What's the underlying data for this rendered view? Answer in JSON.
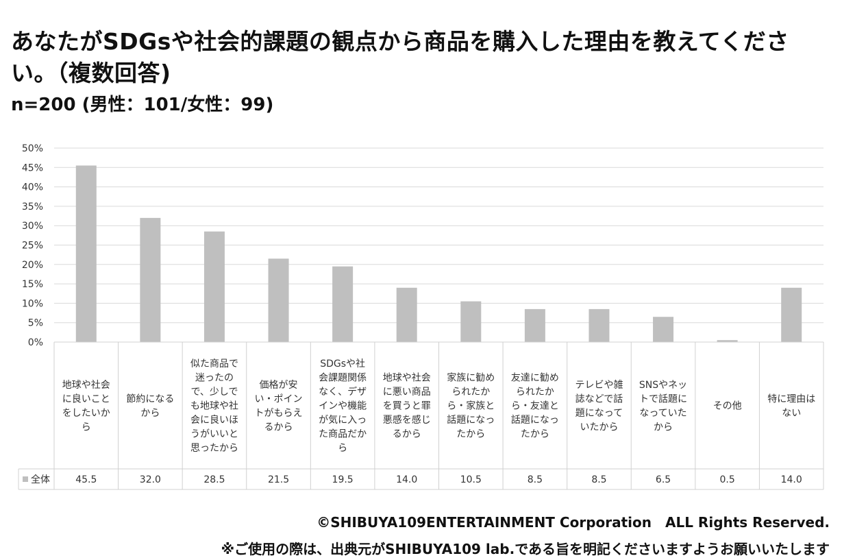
{
  "title": "あなたがSDGsや社会的課題の観点から商品を購入した理由を教えてください。（複数回答)",
  "subtitle": "n=200 (男性：101/女性：99)",
  "footer": {
    "copyright": "©SHIBUYA109ENTERTAINMENT Corporation　ALL Rights Reserved.",
    "note": "※ご使用の際は、出典元がSHIBUYA109 lab.である旨を明記くださいますようお願いいたします"
  },
  "colors": {
    "bar": "#bfbfbf",
    "grid": "#d9d9d9",
    "border": "#d0d0d0"
  },
  "chart_data": {
    "type": "bar",
    "ylim": [
      0,
      50
    ],
    "yticks": [
      "0%",
      "5%",
      "10%",
      "15%",
      "20%",
      "25%",
      "30%",
      "35%",
      "40%",
      "45%",
      "50%"
    ],
    "grid": true,
    "legend_position": "table-left",
    "categories": [
      [
        "地球や社会",
        "に良いこと",
        "をしたいか",
        "ら"
      ],
      [
        "節約になる",
        "から"
      ],
      [
        "似た商品で",
        "迷ったの",
        "で、少しで",
        "も地球や社",
        "会に良いほ",
        "うがいいと",
        "思ったから"
      ],
      [
        "価格が安",
        "い・ポイン",
        "トがもらえ",
        "るから"
      ],
      [
        "SDGsや社",
        "会課題関係",
        "なく、デザ",
        "インや機能",
        "が気に入っ",
        "た商品だか",
        "ら"
      ],
      [
        "地球や社会",
        "に悪い商品",
        "を買うと罪",
        "悪感を感じ",
        "るから"
      ],
      [
        "家族に勧め",
        "られたか",
        "ら・家族と",
        "話題になっ",
        "たから"
      ],
      [
        "友達に勧め",
        "られたか",
        "ら・友達と",
        "話題になっ",
        "たから"
      ],
      [
        "テレビや雑",
        "誌などで話",
        "題になって",
        "いたから"
      ],
      [
        "SNSやネッ",
        "トで話題に",
        "なっていた",
        "から"
      ],
      [
        "その他"
      ],
      [
        "特に理由は",
        "ない"
      ]
    ],
    "series": [
      {
        "name": "全体",
        "values": [
          45.5,
          32.0,
          28.5,
          21.5,
          19.5,
          14.0,
          10.5,
          8.5,
          8.5,
          6.5,
          0.5,
          14.0
        ],
        "labels": [
          "45.5",
          "32.0",
          "28.5",
          "21.5",
          "19.5",
          "14.0",
          "10.5",
          "8.5",
          "8.5",
          "6.5",
          "0.5",
          "14.0"
        ]
      }
    ]
  }
}
